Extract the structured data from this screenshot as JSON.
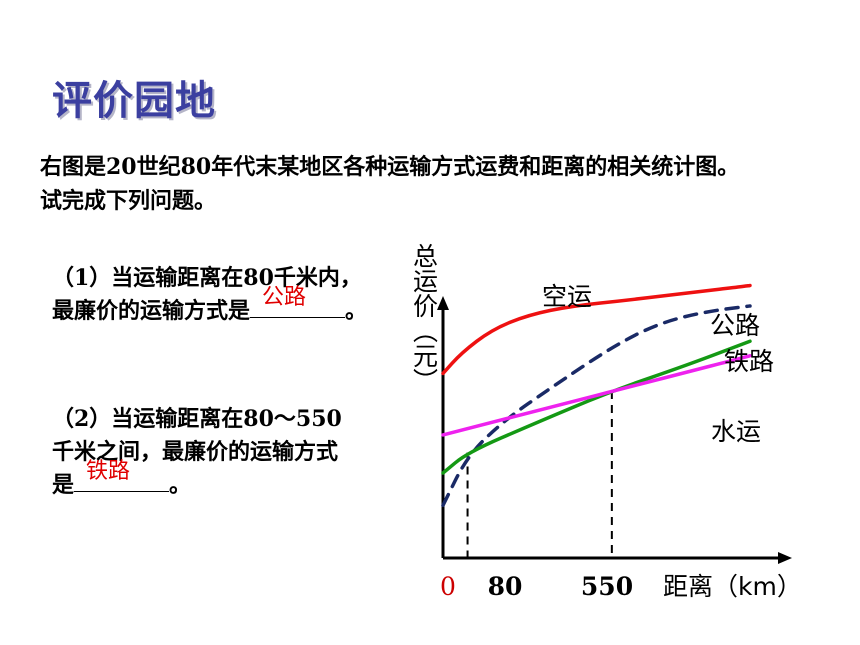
{
  "title": "评价园地",
  "intro": "右图是20世纪80年代末某地区各种运输方式运费和距离的相关统计图。试完成下列问题。",
  "questions": [
    {
      "prefix": "（1）当运输距离在80千米内，最廉价的运输方式是",
      "suffix": "。",
      "answer": "公路"
    },
    {
      "prefix": "（2）当运输距离在80～550千米之间，最廉价的运输方式是",
      "suffix": "。",
      "answer": "铁路"
    }
  ],
  "colors": {
    "title": "#3b3fa0",
    "answer": "#e00000"
  },
  "chart_data": {
    "type": "line",
    "ylabel": "总运价（元）",
    "xlabel": "距离（km）",
    "x_ticks": [
      {
        "label": "0",
        "value": 0,
        "color": "#cc0000"
      },
      {
        "label": "80",
        "value": 80,
        "color": "#000000"
      },
      {
        "label": "550",
        "value": 550,
        "color": "#000000"
      }
    ],
    "x_range": [
      0,
      1000
    ],
    "y_range": [
      0,
      100
    ],
    "reference_lines": [
      {
        "x": 80,
        "y": 36
      },
      {
        "x": 550,
        "y": 57
      }
    ],
    "series": [
      {
        "name": "空运",
        "color": "#ee1111",
        "dash": false,
        "x": [
          0,
          60,
          160,
          280,
          420,
          600,
          800,
          1000
        ],
        "y": [
          63,
          70,
          78,
          83,
          86,
          88,
          90.5,
          93
        ]
      },
      {
        "name": "公路",
        "color": "#1a2a66",
        "dash": true,
        "x": [
          0,
          80,
          200,
          350,
          550,
          700,
          850,
          1000
        ],
        "y": [
          18,
          35,
          47,
          58,
          72,
          80,
          84,
          86
        ]
      },
      {
        "name": "铁路",
        "color": "#149914",
        "dash": false,
        "x": [
          0,
          80,
          300,
          550,
          800,
          1000
        ],
        "y": [
          29,
          36,
          46,
          57,
          66,
          74
        ]
      },
      {
        "name": "水运",
        "color": "#ee22ee",
        "dash": false,
        "x": [
          0,
          1000
        ],
        "y": [
          42,
          69
        ]
      }
    ]
  }
}
